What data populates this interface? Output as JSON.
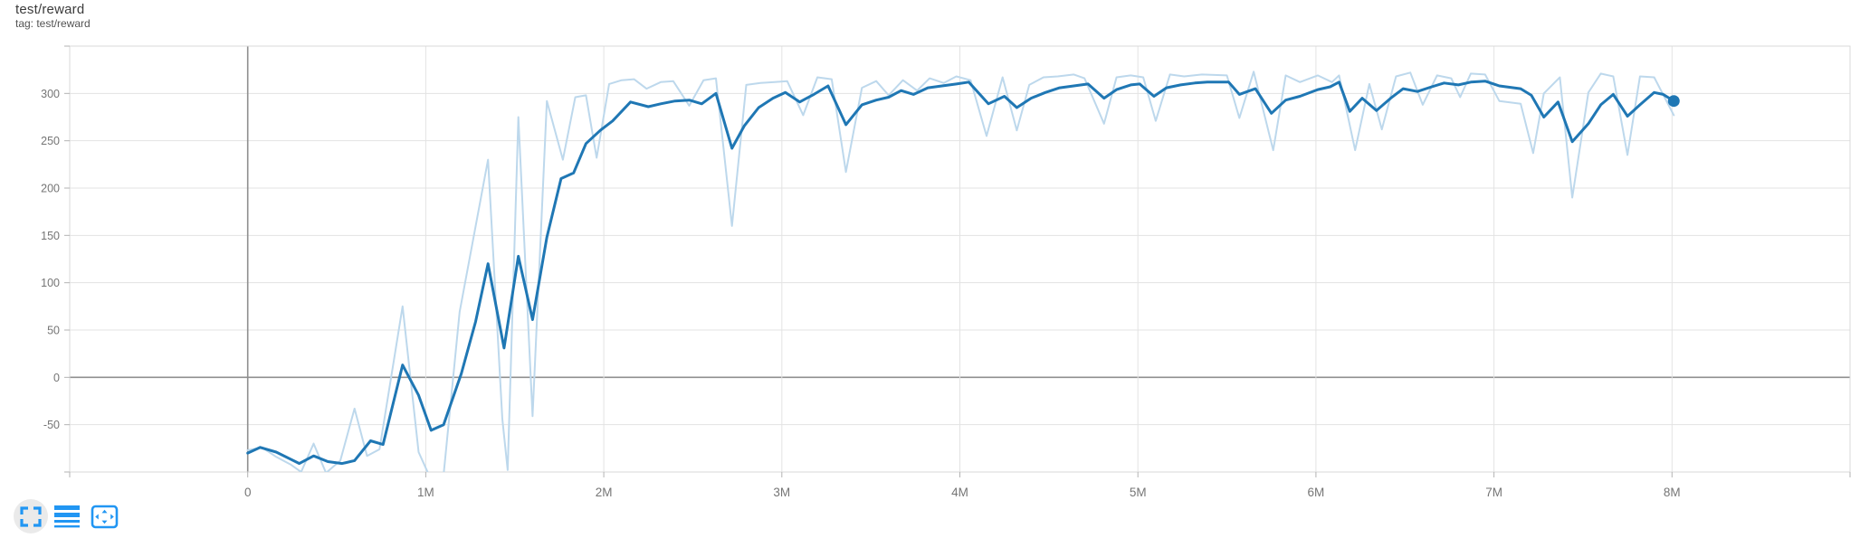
{
  "header": {
    "title": "test/reward",
    "subtitle": "tag: test/reward"
  },
  "footer": {
    "accent_color": "#2196f3",
    "icons": [
      {
        "name": "fullscreen-icon",
        "meaning": "expand chart",
        "hover_circle": true
      },
      {
        "name": "log-scale-icon",
        "meaning": "toggle y-axis log scale",
        "hover_circle": false
      },
      {
        "name": "fit-domain-icon",
        "meaning": "fit domain to data",
        "hover_circle": false
      }
    ]
  },
  "chart_data": {
    "type": "line",
    "title": "test/reward",
    "tag": "test/reward",
    "grid": true,
    "legend_position": "none",
    "x_unit_suffix": "M",
    "x_range_millions": [
      -1,
      9
    ],
    "y_range": [
      -100,
      350
    ],
    "x_ticks": [
      {
        "value": 0,
        "label": "0"
      },
      {
        "value": 1,
        "label": "1M"
      },
      {
        "value": 2,
        "label": "2M"
      },
      {
        "value": 3,
        "label": "3M"
      },
      {
        "value": 4,
        "label": "4M"
      },
      {
        "value": 5,
        "label": "5M"
      },
      {
        "value": 6,
        "label": "6M"
      },
      {
        "value": 7,
        "label": "7M"
      },
      {
        "value": 8,
        "label": "8M"
      }
    ],
    "y_ticks": [
      {
        "value": -50,
        "label": "-50"
      },
      {
        "value": 0,
        "label": "0"
      },
      {
        "value": 50,
        "label": "50"
      },
      {
        "value": 100,
        "label": "100"
      },
      {
        "value": 150,
        "label": "150"
      },
      {
        "value": 200,
        "label": "200"
      },
      {
        "value": 250,
        "label": "250"
      },
      {
        "value": 300,
        "label": "300"
      }
    ],
    "colors": {
      "gridline": "#e3e3e3",
      "zero_line": "#8f8f8f",
      "border": "#d9d9d9",
      "tick": "#b3b3b3",
      "tick_label": "#757575"
    },
    "series": [
      {
        "name": "test/reward (raw)",
        "role": "raw",
        "color": "#bdd8ec",
        "width": 2,
        "points": [
          [
            0.0,
            -77
          ],
          [
            0.08,
            -74
          ],
          [
            0.16,
            -84
          ],
          [
            0.24,
            -92
          ],
          [
            0.3,
            -100
          ],
          [
            0.37,
            -70
          ],
          [
            0.44,
            -101
          ],
          [
            0.52,
            -88
          ],
          [
            0.6,
            -33
          ],
          [
            0.67,
            -83
          ],
          [
            0.74,
            -76
          ],
          [
            0.87,
            75
          ],
          [
            0.96,
            -79
          ],
          [
            1.02,
            -104
          ],
          [
            1.1,
            -103
          ],
          [
            1.19,
            69
          ],
          [
            1.35,
            230
          ],
          [
            1.43,
            -44
          ],
          [
            1.46,
            -98
          ],
          [
            1.52,
            275
          ],
          [
            1.6,
            -41
          ],
          [
            1.68,
            292
          ],
          [
            1.77,
            230
          ],
          [
            1.84,
            296
          ],
          [
            1.9,
            298
          ],
          [
            1.96,
            232
          ],
          [
            2.03,
            310
          ],
          [
            2.1,
            314
          ],
          [
            2.17,
            315
          ],
          [
            2.24,
            305
          ],
          [
            2.32,
            312
          ],
          [
            2.39,
            313
          ],
          [
            2.48,
            287
          ],
          [
            2.56,
            314
          ],
          [
            2.63,
            316
          ],
          [
            2.72,
            160
          ],
          [
            2.8,
            309
          ],
          [
            2.88,
            311
          ],
          [
            2.96,
            312
          ],
          [
            3.03,
            313
          ],
          [
            3.12,
            277
          ],
          [
            3.2,
            317
          ],
          [
            3.28,
            315
          ],
          [
            3.36,
            217
          ],
          [
            3.45,
            306
          ],
          [
            3.53,
            313
          ],
          [
            3.6,
            298
          ],
          [
            3.68,
            314
          ],
          [
            3.76,
            303
          ],
          [
            3.83,
            316
          ],
          [
            3.91,
            311
          ],
          [
            3.98,
            318
          ],
          [
            4.06,
            314
          ],
          [
            4.15,
            255
          ],
          [
            4.24,
            317
          ],
          [
            4.32,
            261
          ],
          [
            4.39,
            309
          ],
          [
            4.47,
            317
          ],
          [
            4.55,
            318
          ],
          [
            4.64,
            320
          ],
          [
            4.7,
            316
          ],
          [
            4.81,
            268
          ],
          [
            4.88,
            317
          ],
          [
            4.96,
            319
          ],
          [
            5.03,
            317
          ],
          [
            5.1,
            271
          ],
          [
            5.18,
            320
          ],
          [
            5.26,
            318
          ],
          [
            5.36,
            320
          ],
          [
            5.5,
            319
          ],
          [
            5.57,
            274
          ],
          [
            5.65,
            323
          ],
          [
            5.76,
            240
          ],
          [
            5.83,
            319
          ],
          [
            5.91,
            312
          ],
          [
            6.01,
            319
          ],
          [
            6.09,
            312
          ],
          [
            6.13,
            319
          ],
          [
            6.22,
            240
          ],
          [
            6.3,
            310
          ],
          [
            6.37,
            262
          ],
          [
            6.45,
            318
          ],
          [
            6.53,
            322
          ],
          [
            6.6,
            288
          ],
          [
            6.68,
            319
          ],
          [
            6.76,
            316
          ],
          [
            6.81,
            296
          ],
          [
            6.87,
            321
          ],
          [
            6.95,
            320
          ],
          [
            7.03,
            292
          ],
          [
            7.15,
            289
          ],
          [
            7.22,
            237
          ],
          [
            7.28,
            300
          ],
          [
            7.37,
            317
          ],
          [
            7.44,
            190
          ],
          [
            7.53,
            301
          ],
          [
            7.6,
            321
          ],
          [
            7.67,
            318
          ],
          [
            7.75,
            235
          ],
          [
            7.82,
            318
          ],
          [
            7.9,
            317
          ],
          [
            8.01,
            277
          ]
        ]
      },
      {
        "name": "test/reward (smoothed)",
        "role": "smoothed",
        "color": "#1f77b4",
        "width": 3,
        "end_dot": {
          "x": 8.01,
          "value": 292,
          "radius": 6.5
        },
        "points": [
          [
            0.0,
            -80
          ],
          [
            0.07,
            -74
          ],
          [
            0.16,
            -79
          ],
          [
            0.29,
            -91
          ],
          [
            0.37,
            -83
          ],
          [
            0.45,
            -89
          ],
          [
            0.53,
            -91
          ],
          [
            0.6,
            -88
          ],
          [
            0.69,
            -67
          ],
          [
            0.76,
            -71
          ],
          [
            0.87,
            13
          ],
          [
            0.96,
            -19
          ],
          [
            1.03,
            -56
          ],
          [
            1.1,
            -50
          ],
          [
            1.2,
            4
          ],
          [
            1.28,
            59
          ],
          [
            1.35,
            120
          ],
          [
            1.44,
            31
          ],
          [
            1.52,
            128
          ],
          [
            1.6,
            61
          ],
          [
            1.68,
            148
          ],
          [
            1.76,
            210
          ],
          [
            1.83,
            216
          ],
          [
            1.9,
            247
          ],
          [
            1.98,
            261
          ],
          [
            2.05,
            271
          ],
          [
            2.15,
            291
          ],
          [
            2.25,
            286
          ],
          [
            2.32,
            289
          ],
          [
            2.4,
            292
          ],
          [
            2.48,
            293
          ],
          [
            2.55,
            289
          ],
          [
            2.63,
            300
          ],
          [
            2.72,
            242
          ],
          [
            2.79,
            266
          ],
          [
            2.87,
            285
          ],
          [
            2.95,
            295
          ],
          [
            3.02,
            301
          ],
          [
            3.1,
            291
          ],
          [
            3.18,
            299
          ],
          [
            3.26,
            308
          ],
          [
            3.36,
            267
          ],
          [
            3.45,
            288
          ],
          [
            3.53,
            293
          ],
          [
            3.6,
            296
          ],
          [
            3.67,
            303
          ],
          [
            3.74,
            299
          ],
          [
            3.82,
            306
          ],
          [
            3.9,
            308
          ],
          [
            3.98,
            310
          ],
          [
            4.05,
            312
          ],
          [
            4.16,
            289
          ],
          [
            4.25,
            297
          ],
          [
            4.32,
            285
          ],
          [
            4.4,
            295
          ],
          [
            4.48,
            301
          ],
          [
            4.56,
            306
          ],
          [
            4.64,
            308
          ],
          [
            4.72,
            310
          ],
          [
            4.81,
            295
          ],
          [
            4.88,
            304
          ],
          [
            4.96,
            309
          ],
          [
            5.01,
            310
          ],
          [
            5.09,
            297
          ],
          [
            5.16,
            306
          ],
          [
            5.24,
            309
          ],
          [
            5.32,
            311
          ],
          [
            5.39,
            312
          ],
          [
            5.51,
            312
          ],
          [
            5.57,
            299
          ],
          [
            5.66,
            305
          ],
          [
            5.75,
            279
          ],
          [
            5.83,
            293
          ],
          [
            5.91,
            297
          ],
          [
            6.01,
            304
          ],
          [
            6.08,
            307
          ],
          [
            6.13,
            312
          ],
          [
            6.19,
            281
          ],
          [
            6.26,
            295
          ],
          [
            6.34,
            282
          ],
          [
            6.42,
            295
          ],
          [
            6.49,
            305
          ],
          [
            6.57,
            302
          ],
          [
            6.65,
            307
          ],
          [
            6.72,
            311
          ],
          [
            6.8,
            309
          ],
          [
            6.87,
            312
          ],
          [
            6.95,
            313
          ],
          [
            7.03,
            308
          ],
          [
            7.15,
            305
          ],
          [
            7.21,
            298
          ],
          [
            7.28,
            275
          ],
          [
            7.36,
            291
          ],
          [
            7.44,
            249
          ],
          [
            7.53,
            268
          ],
          [
            7.6,
            288
          ],
          [
            7.67,
            299
          ],
          [
            7.75,
            276
          ],
          [
            7.82,
            288
          ],
          [
            7.9,
            301
          ],
          [
            7.95,
            299
          ],
          [
            8.01,
            292
          ]
        ]
      }
    ]
  }
}
